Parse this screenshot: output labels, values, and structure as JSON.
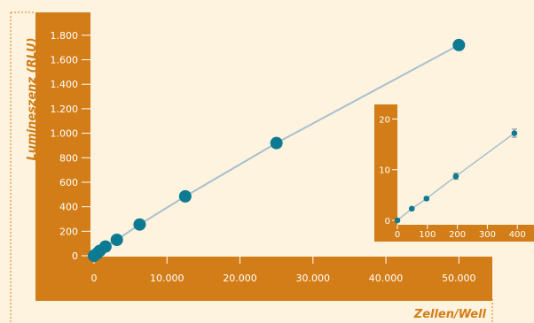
{
  "colors": {
    "background": "#fdf3df",
    "axis_band": "#d27d17",
    "plot_area": "#fdf3df",
    "marker": "#0d7a92",
    "line": "#a9c0cd",
    "tick_text": "#ffffff",
    "label_text": "#d27d17",
    "inset_tick_text": "#5a5a5a",
    "guide": "#d27d17"
  },
  "chart_data": [
    {
      "type": "scatter",
      "title": "",
      "xlabel": "Zellen/Well",
      "ylabel": "Lumineszenz (RLU)",
      "xlim": [
        0,
        53000
      ],
      "ylim": [
        0,
        1900
      ],
      "x_ticks": [
        0,
        10000,
        20000,
        30000,
        40000,
        50000
      ],
      "x_tick_labels": [
        "0",
        "10.000",
        "20.000",
        "30.000",
        "40.000",
        "50.000"
      ],
      "y_ticks": [
        0,
        200,
        400,
        600,
        800,
        1000,
        1200,
        1400,
        1600,
        1800
      ],
      "y_tick_labels": [
        "0",
        "200",
        "400",
        "600",
        "800",
        "1.000",
        "1.200",
        "1.400",
        "1.600",
        "1.800"
      ],
      "grid": false,
      "legend": "none",
      "series": [
        {
          "x": [
            0,
            390,
            780,
            1560,
            3125,
            6250,
            12500,
            25000,
            50000
          ],
          "y": [
            0,
            17,
            40,
            75,
            130,
            255,
            485,
            920,
            1720
          ]
        }
      ]
    },
    {
      "type": "scatter",
      "title": "",
      "xlabel": "",
      "ylabel": "",
      "xlim": [
        0,
        420
      ],
      "ylim": [
        0,
        22
      ],
      "x_ticks": [
        0,
        100,
        200,
        300,
        400
      ],
      "x_tick_labels": [
        "0",
        "100",
        "200",
        "300",
        "400"
      ],
      "y_ticks": [
        0,
        10,
        20
      ],
      "y_tick_labels": [
        "0",
        "10",
        "20"
      ],
      "grid": false,
      "legend": "none",
      "series": [
        {
          "x": [
            0,
            48,
            97,
            195,
            390
          ],
          "y": [
            0,
            2.3,
            4.3,
            8.7,
            17.2
          ],
          "error": [
            0,
            0.2,
            0.3,
            0.6,
            0.8
          ]
        }
      ]
    }
  ]
}
